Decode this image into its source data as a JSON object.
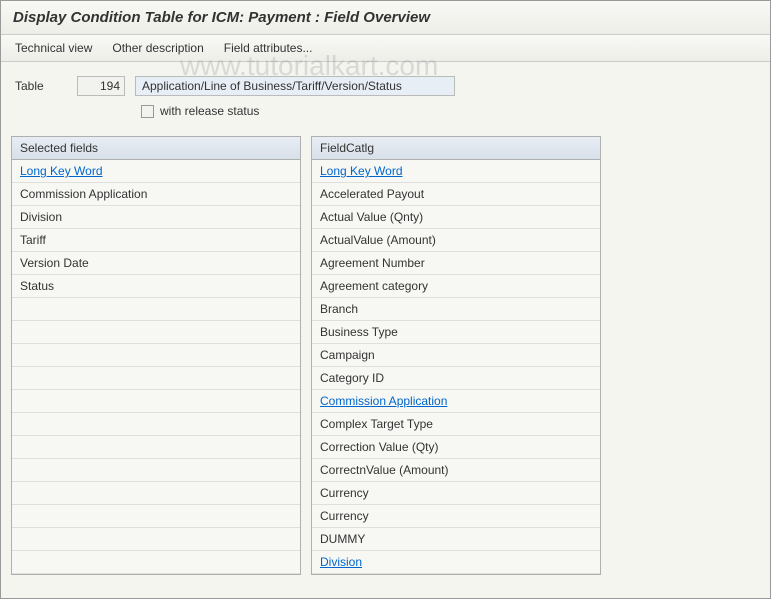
{
  "title": "Display Condition Table for ICM: Payment : Field Overview",
  "toolbar": {
    "technical_view": "Technical view",
    "other_description": "Other description",
    "field_attributes": "Field attributes..."
  },
  "watermark": "www.tutorialkart.com",
  "table": {
    "label": "Table",
    "number": "194",
    "description": "Application/Line of Business/Tariff/Version/Status",
    "checkbox_label": "with release status"
  },
  "selected_fields": {
    "header": "Selected fields",
    "items": [
      {
        "label": "Long Key Word",
        "link": true
      },
      {
        "label": "Commission Application",
        "link": false
      },
      {
        "label": "Division",
        "link": false
      },
      {
        "label": "Tariff",
        "link": false
      },
      {
        "label": "Version Date",
        "link": false
      },
      {
        "label": "Status",
        "link": false
      },
      {
        "label": "",
        "link": false
      },
      {
        "label": "",
        "link": false
      },
      {
        "label": "",
        "link": false
      },
      {
        "label": "",
        "link": false
      },
      {
        "label": "",
        "link": false
      },
      {
        "label": "",
        "link": false
      },
      {
        "label": "",
        "link": false
      },
      {
        "label": "",
        "link": false
      },
      {
        "label": "",
        "link": false
      },
      {
        "label": "",
        "link": false
      },
      {
        "label": "",
        "link": false
      },
      {
        "label": "",
        "link": false
      }
    ]
  },
  "field_catlg": {
    "header": "FieldCatlg",
    "items": [
      {
        "label": "Long Key Word",
        "link": true
      },
      {
        "label": "Accelerated Payout",
        "link": false
      },
      {
        "label": "Actual Value (Qnty)",
        "link": false
      },
      {
        "label": "ActualValue (Amount)",
        "link": false
      },
      {
        "label": "Agreement Number",
        "link": false
      },
      {
        "label": "Agreement category",
        "link": false
      },
      {
        "label": "Branch",
        "link": false
      },
      {
        "label": "Business Type",
        "link": false
      },
      {
        "label": "Campaign",
        "link": false
      },
      {
        "label": "Category ID",
        "link": false
      },
      {
        "label": "Commission Application",
        "link": true
      },
      {
        "label": "Complex Target Type",
        "link": false
      },
      {
        "label": "Correction Value (Qty)",
        "link": false
      },
      {
        "label": "CorrectnValue (Amount)",
        "link": false
      },
      {
        "label": "Currency",
        "link": false
      },
      {
        "label": "Currency",
        "link": false
      },
      {
        "label": "DUMMY",
        "link": false
      },
      {
        "label": "Division",
        "link": true
      }
    ]
  }
}
